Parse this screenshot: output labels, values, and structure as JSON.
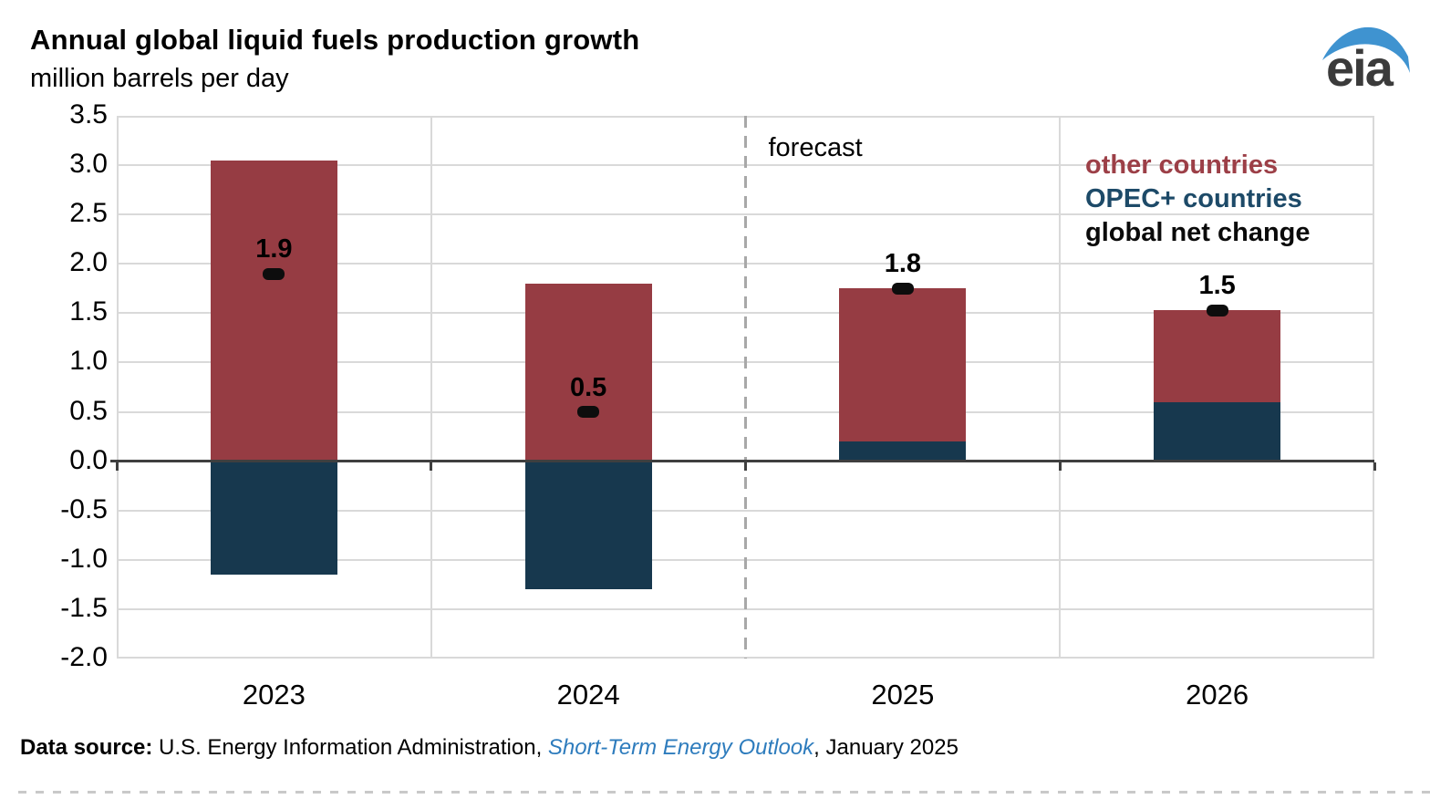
{
  "header": {
    "title": "Annual global liquid fuels production growth",
    "subtitle": "million barrels per day",
    "logo_text": "eia",
    "logo_blue": "#3f93d0",
    "logo_gray": "#3b3b3b"
  },
  "chart_data": {
    "type": "bar",
    "stacked": true,
    "categories": [
      "2023",
      "2024",
      "2025",
      "2026"
    ],
    "series": [
      {
        "name": "OPEC+ countries",
        "color": "#17384e",
        "values": [
          -1.15,
          -1.3,
          0.2,
          0.6
        ]
      },
      {
        "name": "other countries",
        "color": "#963c43",
        "values": [
          3.05,
          1.8,
          1.55,
          0.93
        ]
      }
    ],
    "net_markers": {
      "name": "global net change",
      "color": "#0d0d0d",
      "values": [
        1.9,
        0.5,
        1.75,
        1.53
      ],
      "labels": [
        "1.9",
        "0.5",
        "1.8",
        "1.5"
      ]
    },
    "ylabel": "million barrels per day",
    "ylim": [
      -2.0,
      3.5
    ],
    "ytick_step": 0.5,
    "grid": true,
    "forecast": {
      "label": "forecast",
      "starts_at_category_index": 2
    },
    "legend": [
      {
        "label": "other countries",
        "color": "#9c3f47"
      },
      {
        "label": "OPEC+ countries",
        "color": "#1d4a68"
      },
      {
        "label": "global net change",
        "color": "#0a0a0a"
      }
    ]
  },
  "footer": {
    "source_prefix": "Data source:",
    "source_text": " U.S. Energy Information Administration, ",
    "source_link": "Short-Term Energy Outlook",
    "source_suffix": ", January 2025"
  }
}
